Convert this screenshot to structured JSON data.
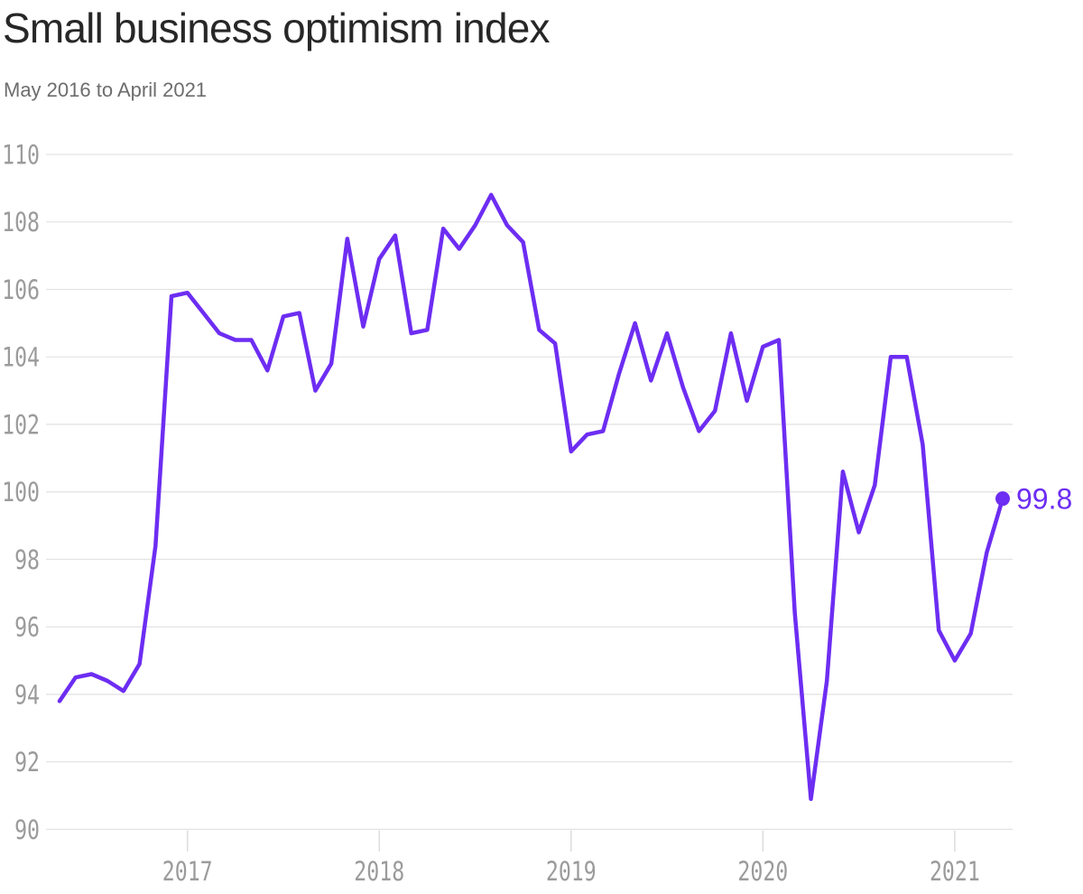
{
  "header": {
    "title": "Small business optimism index",
    "subtitle": "May 2016 to April 2021"
  },
  "chart_data": {
    "type": "line",
    "title": "Small business optimism index",
    "subtitle": "May 2016 to April 2021",
    "x_unit": "month",
    "x_start": "2016-05",
    "x_end": "2021-04",
    "series": [
      {
        "name": "Small business optimism index",
        "values": [
          93.8,
          94.5,
          94.6,
          94.4,
          94.1,
          94.9,
          98.4,
          105.8,
          105.9,
          105.3,
          104.7,
          104.5,
          104.5,
          103.6,
          105.2,
          105.3,
          103.0,
          103.8,
          107.5,
          104.9,
          106.9,
          107.6,
          104.7,
          104.8,
          107.8,
          107.2,
          107.9,
          108.8,
          107.9,
          107.4,
          104.8,
          104.4,
          101.2,
          101.7,
          101.8,
          103.5,
          105.0,
          103.3,
          104.7,
          103.1,
          101.8,
          102.4,
          104.7,
          102.7,
          104.3,
          104.5,
          96.4,
          90.9,
          94.4,
          100.6,
          98.8,
          100.2,
          104.0,
          104.0,
          101.4,
          95.9,
          95.0,
          95.8,
          98.2,
          99.8
        ]
      }
    ],
    "x_tick_labels": [
      "2017",
      "2018",
      "2019",
      "2020",
      "2021"
    ],
    "x_tick_month_index": [
      8,
      20,
      32,
      44,
      56
    ],
    "y_ticks": [
      90,
      92,
      94,
      96,
      98,
      100,
      102,
      104,
      106,
      108,
      110
    ],
    "ylim": [
      90,
      110
    ],
    "grid": "horizontal",
    "legend": "none",
    "end_label": "99.8",
    "end_value": 99.8,
    "colors": {
      "line": "#6d2df2",
      "grid": "#e4e4e4",
      "axis_tick": "#dcdcdc",
      "tick_label": "#9b9b9b",
      "title": "#272727",
      "subtitle": "#6d6d6d",
      "background": "#ffffff"
    }
  }
}
